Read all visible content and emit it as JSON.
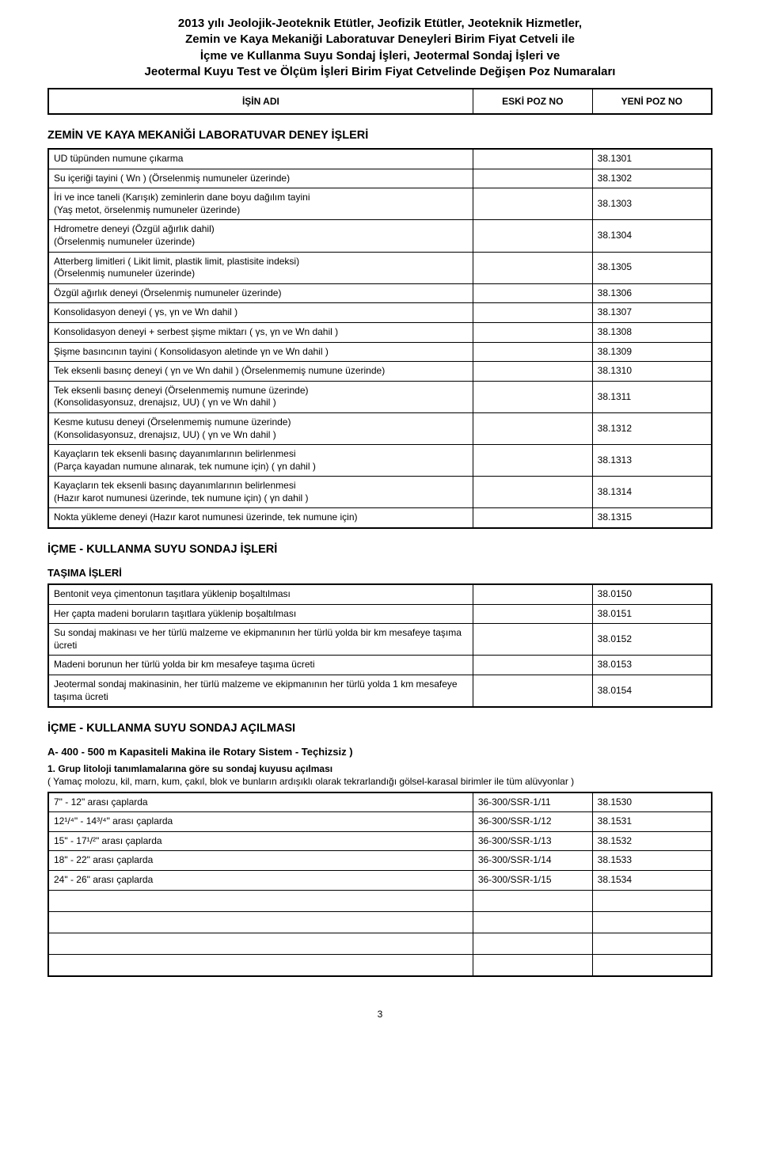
{
  "title_lines": [
    "2013 yılı Jeolojik-Jeoteknik Etütler, Jeofizik Etütler, Jeoteknik Hizmetler,",
    "Zemin ve Kaya Mekaniği Laboratuvar Deneyleri Birim Fiyat Cetveli ile",
    "İçme ve Kullanma Suyu Sondaj İşleri, Jeotermal Sondaj İşleri ve",
    "Jeotermal Kuyu Test ve Ölçüm İşleri Birim Fiyat Cetvelinde Değişen Poz Numaraları"
  ],
  "columns": {
    "isin": "İŞİN ADI",
    "eski": "ESKİ POZ NO",
    "yeni": "YENİ POZ NO"
  },
  "section1": {
    "heading": "ZEMİN VE KAYA MEKANİĞİ LABORATUVAR DENEY İŞLERİ",
    "rows": [
      {
        "name": "UD  tüpünden numune çıkarma",
        "eski": "",
        "yeni": "38.1301"
      },
      {
        "name": "Su içeriği tayini ( Wn )  (Örselenmiş numuneler üzerinde)",
        "eski": "",
        "yeni": "38.1302"
      },
      {
        "name": "İri ve ince taneli (Karışık) zeminlerin dane boyu dağılım tayini\n(Yaş metot,  örselenmiş numuneler üzerinde)",
        "eski": "",
        "yeni": "38.1303"
      },
      {
        "name": "Hdrometre deneyi  (Özgül ağırlık dahil)\n(Örselenmiş numuneler üzerinde)",
        "eski": "",
        "yeni": "38.1304"
      },
      {
        "name": "Atterberg limitleri  ( Likit limit, plastik limit, plastisite indeksi)\n(Örselenmiş numuneler üzerinde)",
        "eski": "",
        "yeni": "38.1305"
      },
      {
        "name": "Özgül ağırlık deneyi   (Örselenmiş numuneler üzerinde)",
        "eski": "",
        "yeni": "38.1306"
      },
      {
        "name": "Konsolidasyon deneyi    ( γs,  γn  ve Wn dahil )",
        "eski": "",
        "yeni": "38.1307"
      },
      {
        "name": "Konsolidasyon deneyi + serbest şişme miktarı     ( γs,  γn  ve Wn dahil )",
        "eski": "",
        "yeni": "38.1308"
      },
      {
        "name": "Şişme basıncının tayini    ( Konsolidasyon aletinde  γn ve Wn dahil )",
        "eski": "",
        "yeni": "38.1309"
      },
      {
        "name": "Tek eksenli basınç deneyi   ( γn ve Wn dahil )    (Örselenmemiş numune üzerinde)",
        "eski": "",
        "yeni": "38.1310"
      },
      {
        "name": "Tek eksenli basınç deneyi  (Örselenmemiş numune üzerinde)\n(Konsolidasyonsuz, drenajsız, UU)    ( γn ve Wn dahil )",
        "eski": "",
        "yeni": "38.1311"
      },
      {
        "name": "Kesme kutusu deneyi  (Örselenmemiş numune üzerinde)\n(Konsolidasyonsuz, drenajsız, UU)   ( γn ve Wn dahil )",
        "eski": "",
        "yeni": "38.1312"
      },
      {
        "name": "Kayaçların tek eksenli basınç dayanımlarının belirlenmesi\n(Parça kayadan numune alınarak,  tek numune için)    ( γn dahil )",
        "eski": "",
        "yeni": "38.1313"
      },
      {
        "name": "Kayaçların tek eksenli basınç dayanımlarının belirlenmesi\n(Hazır karot numunesi üzerinde,  tek numune için)    ( γn dahil )",
        "eski": "",
        "yeni": "38.1314"
      },
      {
        "name": "Nokta yükleme deneyi (Hazır karot numunesi üzerinde,  tek numune için)",
        "eski": "",
        "yeni": "38.1315"
      }
    ]
  },
  "section2": {
    "heading": "İÇME - KULLANMA SUYU SONDAJ İŞLERİ",
    "sub": "TAŞIMA İŞLERİ",
    "rows": [
      {
        "name": "Bentonit veya çimentonun taşıtlara yüklenip boşaltılması",
        "eski": "",
        "yeni": "38.0150"
      },
      {
        "name": "Her çapta madeni boruların taşıtlara yüklenip boşaltılması",
        "eski": "",
        "yeni": "38.0151"
      },
      {
        "name": "Su sondaj makinası ve her türlü malzeme ve ekipmanının her türlü yolda bir km mesafeye taşıma ücreti",
        "eski": "",
        "yeni": "38.0152"
      },
      {
        "name": "Madeni borunun  her türlü yolda bir km mesafeye taşıma ücreti",
        "eski": "",
        "yeni": "38.0153"
      },
      {
        "name": "Jeotermal sondaj makinasinin, her türlü malzeme ve ekipmanının her türlü yolda 1 km mesafeye taşıma ücreti",
        "eski": "",
        "yeni": "38.0154"
      }
    ]
  },
  "section3": {
    "heading": "İÇME - KULLANMA SUYU SONDAJ AÇILMASI",
    "sub": "A-  400 - 500 m Kapasiteli Makina ile Rotary Sistem - Teçhizsiz )",
    "intro_bold": "1. Grup litoloji tanımlamalarına göre su sondaj kuyusu açılması",
    "intro_rest": "( Yamaç molozu, kil, marn, kum, çakıl, blok ve bunların ardışıklı olarak tekrarlandığı gölsel-karasal birimler ile tüm alüvyonlar )",
    "rows": [
      {
        "name": "      7\" - 12\"  arası çaplarda",
        "eski": "36-300/SSR-1/11",
        "yeni": "38.1530"
      },
      {
        "name": "      12¹/⁴\" - 14³/⁴\"  arası çaplarda",
        "eski": "36-300/SSR-1/12",
        "yeni": "38.1531"
      },
      {
        "name": "      15\" - 17¹/²\"  arası çaplarda",
        "eski": "36-300/SSR-1/13",
        "yeni": "38.1532"
      },
      {
        "name": "      18\" - 22\"  arası çaplarda",
        "eski": "36-300/SSR-1/14",
        "yeni": "38.1533"
      },
      {
        "name": "      24\" - 26\"  arası çaplarda",
        "eski": "36-300/SSR-1/15",
        "yeni": "38.1534"
      }
    ]
  },
  "page_number": "3"
}
